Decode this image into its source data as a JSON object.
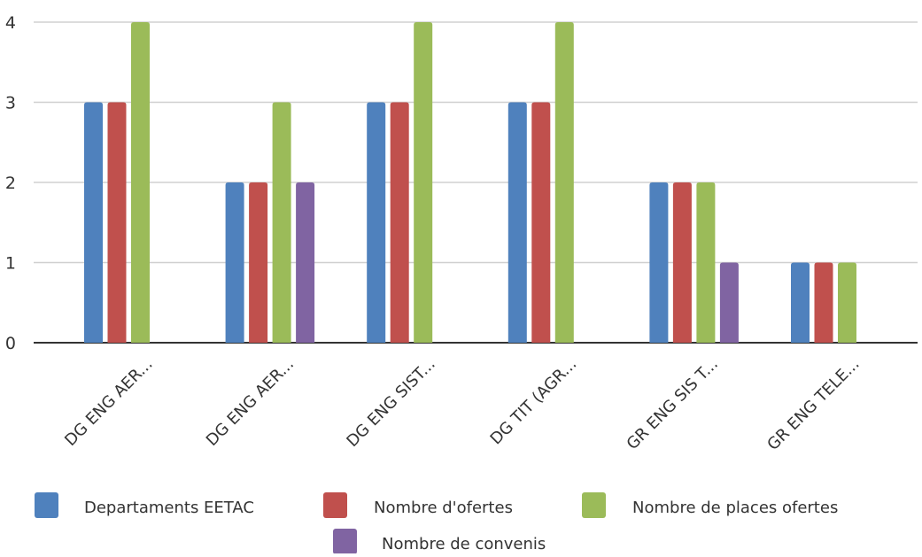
{
  "chart_data": {
    "type": "bar",
    "title": "",
    "xlabel": "",
    "ylabel": "",
    "ylim": [
      0,
      4
    ],
    "yticks": [
      0,
      1,
      2,
      3,
      4
    ],
    "grid": true,
    "legend_position": "bottom",
    "categories": [
      "DG ENG AER...",
      "DG ENG AER...",
      "DG ENG SIST...",
      "DG TIT (AGR...",
      "GR ENG SIS T...",
      "GR ENG TELE..."
    ],
    "series": [
      {
        "name": "Departaments EETAC",
        "color": "#4f81bd",
        "values": [
          3,
          2,
          3,
          3,
          2,
          1
        ]
      },
      {
        "name": "Nombre d'ofertes",
        "color": "#c0504d",
        "values": [
          3,
          2,
          3,
          3,
          2,
          1
        ]
      },
      {
        "name": "Nombre de places ofertes",
        "color": "#9bbb59",
        "values": [
          4,
          3,
          4,
          4,
          2,
          1
        ]
      },
      {
        "name": "Nombre de convenis",
        "color": "#8064a2",
        "values": [
          null,
          2,
          null,
          null,
          1,
          null
        ]
      }
    ]
  }
}
